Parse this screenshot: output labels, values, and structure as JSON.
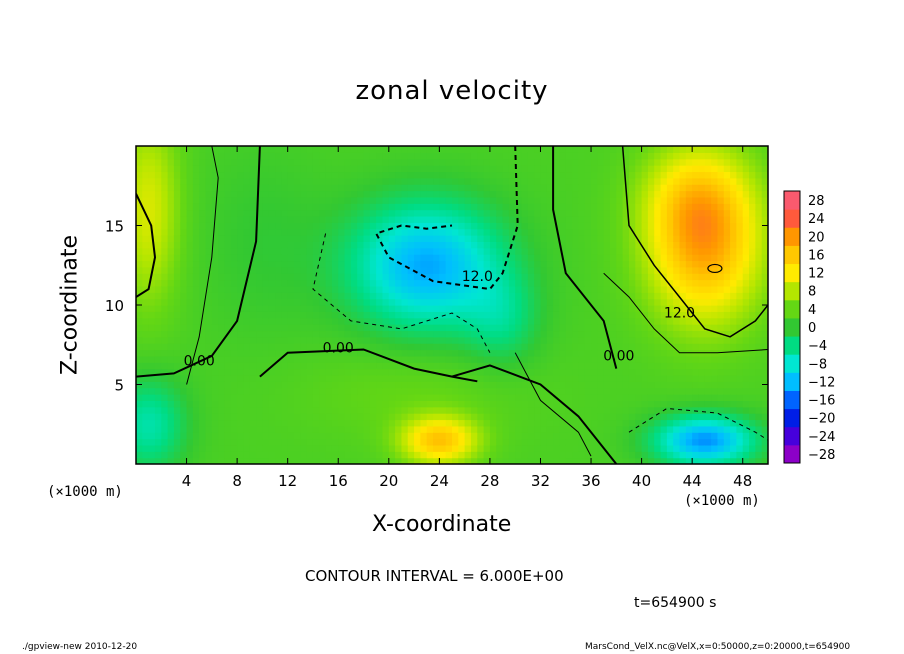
{
  "chart_data": {
    "type": "heatmap",
    "title": "zonal velocity",
    "xlabel": "X-coordinate",
    "ylabel": "Z-coordinate",
    "x_unit": "(×1000 m)",
    "xlim": [
      0,
      50
    ],
    "ylim": [
      0,
      20
    ],
    "x_ticks": [
      4,
      8,
      12,
      16,
      20,
      24,
      28,
      32,
      36,
      40,
      44,
      48
    ],
    "y_ticks": [
      5,
      10,
      15
    ],
    "colorbar": {
      "levels": [
        28,
        24,
        20,
        16,
        12,
        8,
        4,
        0,
        -4,
        -8,
        -12,
        -16,
        -20,
        -24,
        -28
      ],
      "labels": [
        "28",
        "24",
        "20",
        "16",
        "12",
        "8",
        "4",
        "0",
        "−4",
        "−8",
        "−12",
        "−16",
        "−20",
        "−24",
        "−28"
      ]
    },
    "contour_labels": [
      {
        "text": "0.00",
        "x": 5,
        "y": 6.2
      },
      {
        "text": "0.00",
        "x": 16,
        "y": 7.0
      },
      {
        "text": "0.00",
        "x": 38.2,
        "y": 6.5
      },
      {
        "text": "12.0",
        "x": 27,
        "y": 11.5
      },
      {
        "text": "12.0",
        "x": 43,
        "y": 9.2
      }
    ],
    "contour_interval": "CONTOUR INTERVAL = 6.000E+00",
    "time": "t=654900 s"
  },
  "footer": {
    "left": "./gpview-new  2010-12-20",
    "right": "MarsCond_VelX.nc@VelX,x=0:50000,z=0:20000,t=654900"
  },
  "colors": {
    "red": "#f80000",
    "orange": "#ff9600",
    "yellow": "#ffeb00",
    "green": "#32c832",
    "lightgreen": "#a0e600",
    "cyan": "#00e6d2",
    "blue": "#0064ff",
    "purple": "#8c00c8"
  }
}
